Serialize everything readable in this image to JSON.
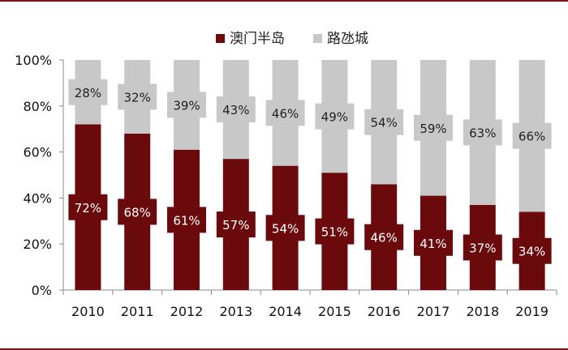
{
  "chart_data": {
    "type": "bar",
    "stacked": true,
    "percent": true,
    "categories": [
      "2010",
      "2011",
      "2012",
      "2013",
      "2014",
      "2015",
      "2016",
      "2017",
      "2018",
      "2019"
    ],
    "series": [
      {
        "name": "澳门半岛",
        "color": "#6b0a0c",
        "values": [
          72,
          68,
          61,
          57,
          54,
          51,
          46,
          41,
          37,
          34
        ]
      },
      {
        "name": "路氹城",
        "color": "#c8c8c8",
        "values": [
          28,
          32,
          39,
          43,
          46,
          49,
          54,
          59,
          63,
          66
        ]
      }
    ],
    "ylim": [
      0,
      100
    ],
    "yticks": [
      "0%",
      "20%",
      "40%",
      "60%",
      "80%",
      "100%"
    ],
    "value_suffix": "%",
    "grid": false,
    "legend_position": "top-center"
  }
}
